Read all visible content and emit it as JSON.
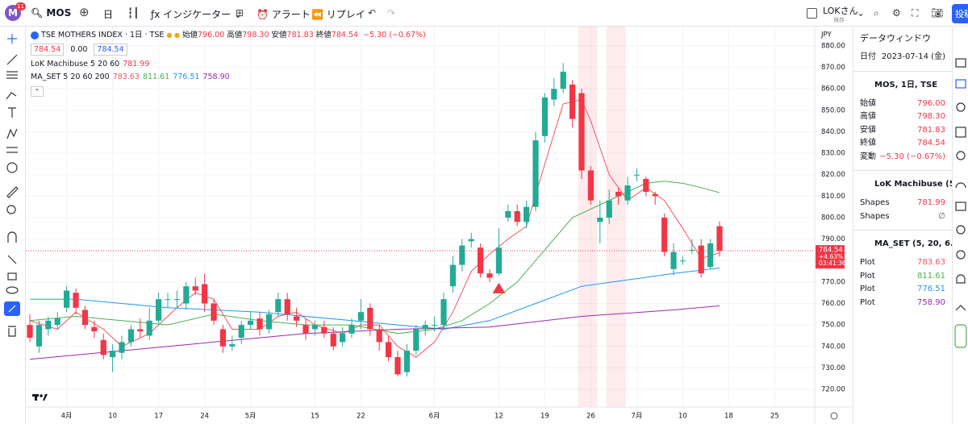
{
  "toolbar": {
    "avatar": "M",
    "badge": "11",
    "symbol": "MOS",
    "interval": "日",
    "indicators": "インジケーター",
    "alert": "アラート",
    "replay": "リプレイ",
    "user": "LOKさん",
    "saved": "保存",
    "publish": "投稿"
  },
  "legend": {
    "title": "TSE MOTHERS INDEX · 1日 · TSE",
    "ohlc": [
      {
        "label": "始値",
        "value": "796.00"
      },
      {
        "label": "高値",
        "value": "798.30"
      },
      {
        "label": "安値",
        "value": "781.83"
      },
      {
        "label": "終値",
        "value": "784.54"
      }
    ],
    "change": "−5.30 (−0.67%)",
    "boxes": [
      "784.54",
      "0.00",
      "784.54"
    ],
    "indicators": [
      {
        "name": "LoK Machibuse 5 20 60",
        "values": [
          "781.99"
        ]
      },
      {
        "name": "MA_SET 5 20 60 200",
        "values": [
          "783.63",
          "811.61",
          "776.51",
          "758.90"
        ]
      }
    ]
  },
  "data_window": {
    "title": "データウィンドウ",
    "date_label": "日付",
    "date": "2023-07-14 (金)",
    "sections": [
      {
        "title": "MOS, 1日, TSE",
        "rows": [
          [
            "始値",
            "796.00"
          ],
          [
            "高値",
            "798.30"
          ],
          [
            "安値",
            "781.83"
          ],
          [
            "終値",
            "784.54"
          ],
          [
            "変動",
            "−5.30 (−0.67%)"
          ]
        ]
      },
      {
        "title": "LoK Machibuse (5...",
        "rows": [
          [
            "Shapes",
            "781.99"
          ],
          [
            "Shapes",
            "∅"
          ]
        ]
      },
      {
        "title": "MA_SET (5, 20, 6...",
        "rows": [
          [
            "Plot",
            "783.63"
          ],
          [
            "Plot",
            "811.61"
          ],
          [
            "Plot",
            "776.51"
          ],
          [
            "Plot",
            "758.90"
          ]
        ]
      }
    ]
  },
  "chart_data": {
    "type": "candlestick",
    "currency": "JPY",
    "up_color": "#22ab94",
    "down_color": "#f23645",
    "x": [
      0,
      1,
      2,
      3,
      4,
      5,
      6,
      7,
      8,
      9,
      10,
      11,
      12,
      13,
      14,
      15,
      16,
      17,
      18,
      19,
      20,
      21,
      22,
      23,
      24,
      25,
      26,
      27,
      28,
      29,
      30,
      31,
      32,
      33,
      34,
      35,
      36,
      37,
      38,
      39,
      40,
      41,
      42,
      43,
      44,
      45,
      46,
      47,
      48,
      49,
      50,
      51,
      52,
      53,
      54,
      55,
      56,
      57,
      58,
      59,
      60,
      61,
      62,
      63,
      64,
      65,
      66,
      67,
      68,
      69,
      70,
      71,
      72,
      73,
      74,
      75
    ],
    "candles": {
      "open": [
        750,
        740,
        748,
        750,
        758,
        765,
        757,
        749,
        743,
        735,
        737,
        742,
        748,
        745,
        752,
        762,
        762,
        760,
        768,
        769,
        760,
        748,
        740,
        744,
        750,
        753,
        748,
        756,
        762,
        754,
        750,
        748,
        749,
        746,
        742,
        746,
        752,
        758,
        748,
        742,
        735,
        728,
        738,
        748,
        750,
        750,
        768,
        778,
        789,
        786,
        774,
        774,
        800,
        803,
        798,
        805,
        838,
        855,
        860,
        862,
        858,
        822,
        798,
        800,
        812,
        808,
        820,
        818,
        811,
        800,
        776,
        780,
        785,
        787,
        777,
        796
      ],
      "high": [
        755,
        752,
        754,
        756,
        768,
        767,
        759,
        752,
        746,
        741,
        745,
        750,
        753,
        758,
        765,
        765,
        766,
        770,
        772,
        774,
        762,
        750,
        745,
        752,
        756,
        756,
        757,
        765,
        765,
        758,
        753,
        752,
        752,
        749,
        749,
        753,
        762,
        760,
        750,
        745,
        738,
        741,
        750,
        752,
        754,
        765,
        782,
        790,
        793,
        788,
        776,
        795,
        806,
        806,
        808,
        840,
        858,
        865,
        872,
        864,
        860,
        824,
        808,
        813,
        814,
        819,
        823,
        819,
        812,
        802,
        788,
        782,
        790,
        790,
        790,
        798.3
      ],
      "low": [
        742,
        737,
        745,
        748,
        756,
        755,
        748,
        744,
        734,
        728,
        734,
        740,
        744,
        743,
        750,
        758,
        758,
        757,
        764,
        756,
        750,
        737,
        738,
        741,
        748,
        745,
        746,
        754,
        752,
        749,
        743,
        745,
        744,
        738,
        740,
        744,
        748,
        745,
        738,
        733,
        726,
        726,
        736,
        745,
        747,
        748,
        765,
        775,
        786,
        772,
        770,
        773,
        798,
        796,
        795,
        803,
        835,
        852,
        858,
        842,
        818,
        806,
        788,
        797,
        806,
        806,
        817,
        810,
        806,
        782,
        773,
        778,
        783,
        772,
        776,
        781.83
      ],
      "close": [
        744,
        750,
        752,
        753,
        766,
        758,
        750,
        747,
        736,
        738,
        742,
        748,
        747,
        752,
        762,
        762,
        762,
        768,
        766,
        760,
        752,
        740,
        741,
        750,
        752,
        748,
        755,
        762,
        755,
        752,
        746,
        750,
        746,
        740,
        746,
        750,
        756,
        748,
        742,
        735,
        727,
        738,
        748,
        750,
        750,
        762,
        778,
        787,
        790,
        774,
        772,
        786,
        803,
        798,
        805,
        836,
        856,
        860,
        868,
        846,
        822,
        808,
        800,
        808,
        810,
        815,
        820,
        812,
        810,
        784,
        784,
        780,
        785,
        774,
        788,
        784.54
      ]
    },
    "series": [
      {
        "color": "#f7525f",
        "x": [
          0,
          3,
          5,
          8,
          10,
          13,
          16,
          18,
          20,
          22,
          25,
          27,
          29,
          31,
          34,
          36,
          38,
          40,
          42,
          44,
          46,
          48,
          50,
          52,
          54,
          56,
          58,
          60,
          61,
          63,
          65,
          67,
          69,
          71,
          73,
          75
        ],
        "values": [
          752,
          748,
          756,
          748,
          740,
          746,
          758,
          765,
          762,
          748,
          748,
          754,
          756,
          750,
          746,
          750,
          750,
          740,
          735,
          742,
          756,
          775,
          783,
          790,
          796,
          825,
          853,
          855,
          845,
          820,
          808,
          814,
          808,
          795,
          781,
          783.63
        ]
      },
      {
        "color": "#4caf50",
        "x": [
          0,
          5,
          10,
          15,
          20,
          25,
          30,
          35,
          40,
          44,
          47,
          50,
          53,
          56,
          59,
          62,
          65,
          67,
          69,
          71,
          73,
          75
        ],
        "values": [
          752,
          754,
          752,
          750,
          755,
          752,
          750,
          750,
          746,
          748,
          752,
          760,
          770,
          785,
          800,
          806,
          812,
          816,
          817,
          816,
          814,
          811.61
        ]
      },
      {
        "color": "#2196f3",
        "x": [
          0,
          5,
          10,
          15,
          20,
          25,
          30,
          35,
          40,
          45,
          50,
          55,
          60,
          65,
          70,
          75
        ],
        "values": [
          762,
          762,
          760,
          758,
          757,
          756,
          754,
          752,
          750,
          748,
          752,
          760,
          768,
          771,
          774,
          776.51
        ]
      },
      {
        "color": "#9c27b0",
        "x": [
          0,
          10,
          20,
          30,
          40,
          50,
          60,
          70,
          75
        ],
        "values": [
          734,
          738,
          742,
          746,
          748,
          749,
          754,
          757,
          758.9
        ]
      }
    ],
    "highlight_bands": [
      {
        "x0": 59.6,
        "x1": 61.7
      },
      {
        "x0": 62.7,
        "x1": 64.8
      }
    ],
    "markers": [
      {
        "x": 51,
        "y": 767
      }
    ],
    "last_price": 784.54,
    "last_price_labels": [
      "+4.63%",
      "03:41:36"
    ],
    "xlim": [
      -0.44,
      85.35
    ],
    "ylim": [
      711.74,
      889.01
    ],
    "xticks": [
      {
        "value": 4,
        "label": "4月"
      },
      {
        "value": 9,
        "label": "10"
      },
      {
        "value": 14,
        "label": "17"
      },
      {
        "value": 19,
        "label": "24"
      },
      {
        "value": 24,
        "label": "5月"
      },
      {
        "value": 31,
        "label": "15"
      },
      {
        "value": 36,
        "label": "22"
      },
      {
        "value": 44,
        "label": "6月"
      },
      {
        "value": 51,
        "label": "12"
      },
      {
        "value": 56,
        "label": "19"
      },
      {
        "value": 61,
        "label": "26"
      },
      {
        "value": 66,
        "label": "7月"
      },
      {
        "value": 71,
        "label": "10"
      },
      {
        "value": 76,
        "label": "18"
      },
      {
        "value": 81,
        "label": "25"
      }
    ],
    "yticks": [
      {
        "value": 720,
        "label": "720.00"
      },
      {
        "value": 730,
        "label": "730.00"
      },
      {
        "value": 740,
        "label": "740.00"
      },
      {
        "value": 750,
        "label": "750.00"
      },
      {
        "value": 760,
        "label": "760.00"
      },
      {
        "value": 770,
        "label": "770.00"
      },
      {
        "value": 780,
        "label": "780.00"
      },
      {
        "value": 790,
        "label": "790.00"
      },
      {
        "value": 800,
        "label": "800.00"
      },
      {
        "value": 810,
        "label": "810.00"
      },
      {
        "value": 820,
        "label": "820.00"
      },
      {
        "value": 830,
        "label": "830.00"
      },
      {
        "value": 840,
        "label": "840.00"
      },
      {
        "value": 850,
        "label": "850.00"
      },
      {
        "value": 860,
        "label": "860.00"
      },
      {
        "value": 870,
        "label": "870.00"
      },
      {
        "value": 880,
        "label": "880.00"
      }
    ],
    "grid": true
  }
}
